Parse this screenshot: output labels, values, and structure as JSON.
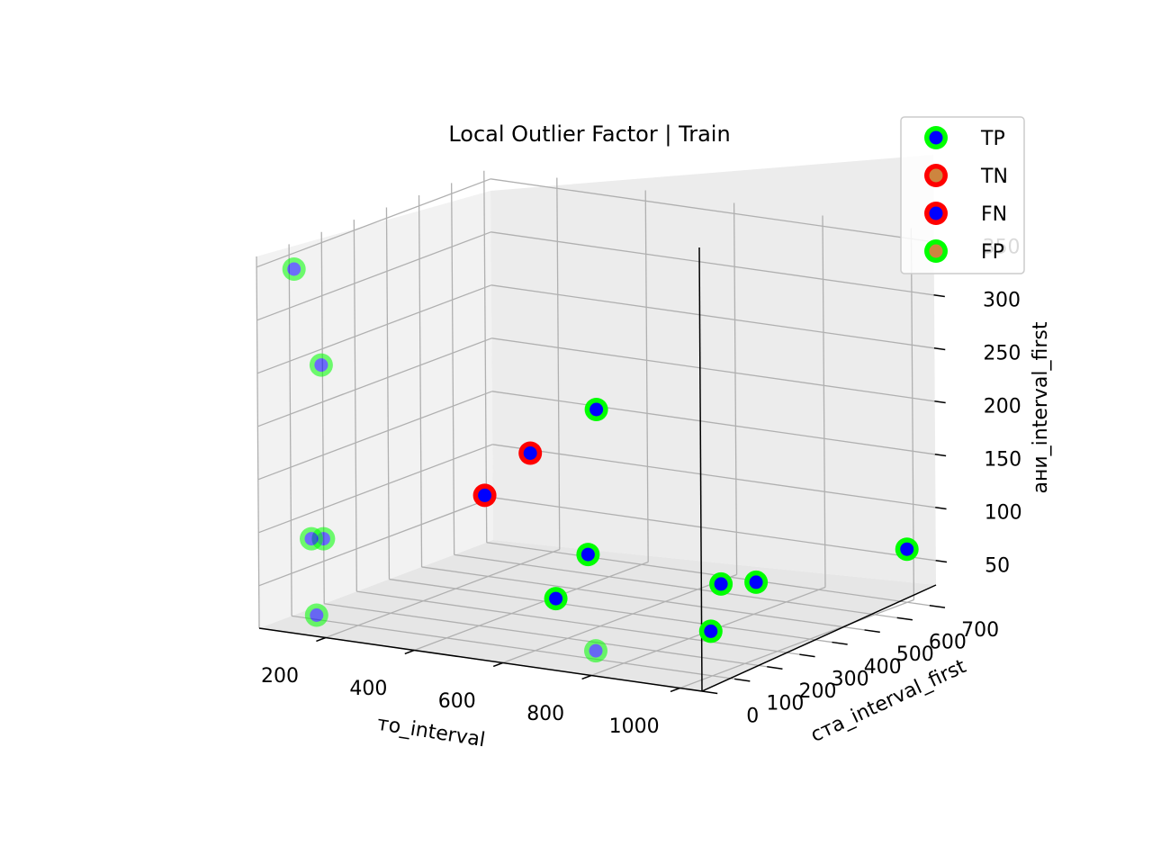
{
  "chart_data": {
    "type": "scatter",
    "projection": "3d",
    "title": "Local Outlier Factor | Train",
    "xlabel": "то_interval",
    "ylabel": "ста_interval_first",
    "zlabel": "ани_interval_first",
    "xlim": [
      50,
      1050
    ],
    "ylim": [
      0,
      720
    ],
    "zlim": [
      10,
      360
    ],
    "xticks": [
      "200",
      "400",
      "600",
      "800",
      "1000"
    ],
    "yticks": [
      "0",
      "100",
      "200",
      "300",
      "400",
      "500",
      "600",
      "700"
    ],
    "zticks": [
      "50",
      "100",
      "150",
      "200",
      "250",
      "300",
      "350"
    ],
    "grid": true,
    "legend_position": "top-right",
    "legend": [
      {
        "label": "TP",
        "edge": "#00ff00",
        "fill": "#0000ff"
      },
      {
        "label": "TN",
        "edge": "#ff0000",
        "fill": "#cd853f"
      },
      {
        "label": "FN",
        "edge": "#ff0000",
        "fill": "#0000ff"
      },
      {
        "label": "FP",
        "edge": "#00ff00",
        "fill": "#cd853f"
      }
    ],
    "series": [
      {
        "name": "TP",
        "points": [
          {
            "x": 120,
            "y": 20,
            "z": 350
          },
          {
            "x": 165,
            "y": 40,
            "z": 260
          },
          {
            "x": 140,
            "y": 40,
            "z": 95
          },
          {
            "x": 160,
            "y": 50,
            "z": 95
          },
          {
            "x": 180,
            "y": 0,
            "z": 30
          },
          {
            "x": 300,
            "y": 700,
            "z": 150
          },
          {
            "x": 500,
            "y": 400,
            "z": 60
          },
          {
            "x": 500,
            "y": 300,
            "z": 30
          },
          {
            "x": 800,
            "y": 400,
            "z": 50
          },
          {
            "x": 850,
            "y": 440,
            "z": 50
          },
          {
            "x": 850,
            "y": 300,
            "z": 20
          },
          {
            "x": 700,
            "y": 150,
            "z": 10
          },
          {
            "x": 1000,
            "y": 700,
            "z": 60
          }
        ]
      },
      {
        "name": "FN",
        "points": [
          {
            "x": 150,
            "y": 700,
            "z": 100
          },
          {
            "x": 120,
            "y": 600,
            "z": 70
          }
        ]
      }
    ]
  }
}
